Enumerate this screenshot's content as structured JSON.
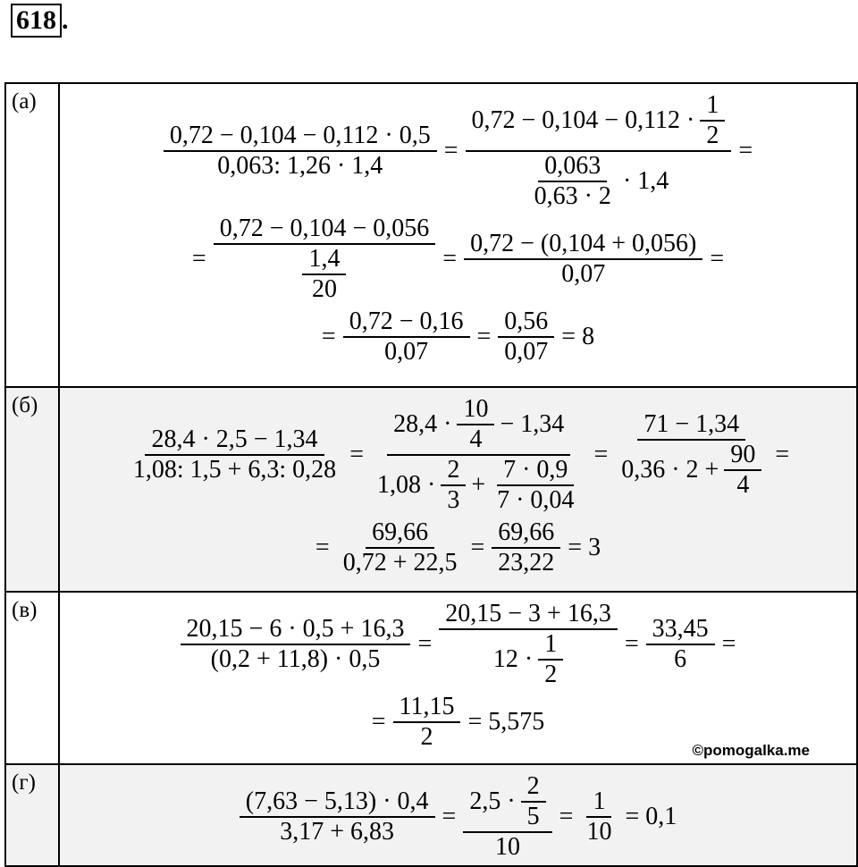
{
  "header": {
    "number": "618",
    "suffix": "."
  },
  "rows": [
    {
      "label": "(а)",
      "lines": [
        [
          {
            "num": [
              "0,72 − 0,104 − 0,112 · 0,5"
            ],
            "den": [
              "0,063: 1,26 · 1,4"
            ]
          },
          "=",
          {
            "num": [
              "0,72 − 0,104 − 0,112 ·",
              {
                "num": [
                  "1"
                ],
                "den": [
                  "2"
                ]
              }
            ],
            "den": [
              {
                "num": [
                  "0,063"
                ],
                "den": [
                  "0,63 · 2"
                ]
              },
              "· 1,4"
            ]
          },
          "="
        ],
        [
          "=",
          {
            "num": [
              "0,72 − 0,104 − 0,056"
            ],
            "den": [
              {
                "num": [
                  "1,4"
                ],
                "den": [
                  "20"
                ]
              }
            ]
          },
          "=",
          {
            "num": [
              "0,72 − (0,104 + 0,056)"
            ],
            "den": [
              "0,07"
            ]
          },
          "="
        ],
        [
          "=",
          {
            "num": [
              "0,72 − 0,16"
            ],
            "den": [
              "0,07"
            ]
          },
          "=",
          {
            "num": [
              "0,56"
            ],
            "den": [
              "0,07"
            ]
          },
          "= 8"
        ]
      ]
    },
    {
      "label": "(б)",
      "lines": [
        [
          {
            "num": [
              "28,4 · 2,5 − 1,34"
            ],
            "den": [
              "1,08: 1,5 + 6,3: 0,28"
            ]
          },
          "=",
          {
            "num": [
              "28,4 ·",
              {
                "num": [
                  "10"
                ],
                "den": [
                  "4"
                ]
              },
              "− 1,34"
            ],
            "den": [
              "1,08 ·",
              {
                "num": [
                  "2"
                ],
                "den": [
                  "3"
                ]
              },
              "+",
              {
                "num": [
                  "7 · 0,9"
                ],
                "den": [
                  "7 · 0,04"
                ]
              }
            ]
          },
          "=",
          {
            "num": [
              "71 − 1,34"
            ],
            "den": [
              "0,36 · 2 +",
              {
                "num": [
                  "90"
                ],
                "den": [
                  "4"
                ]
              }
            ]
          },
          "="
        ],
        [
          "=",
          {
            "num": [
              "69,66"
            ],
            "den": [
              "0,72 + 22,5"
            ]
          },
          "=",
          {
            "num": [
              "69,66"
            ],
            "den": [
              "23,22"
            ]
          },
          "= 3"
        ]
      ]
    },
    {
      "label": "(в)",
      "lines": [
        [
          {
            "num": [
              "20,15 − 6 · 0,5 + 16,3"
            ],
            "den": [
              "(0,2 + 11,8) · 0,5"
            ]
          },
          "=",
          {
            "num": [
              "20,15 − 3 + 16,3"
            ],
            "den": [
              "12 ·",
              {
                "num": [
                  "1"
                ],
                "den": [
                  "2"
                ]
              }
            ]
          },
          "=",
          {
            "num": [
              "33,45"
            ],
            "den": [
              "6"
            ]
          },
          "="
        ],
        [
          "=",
          {
            "num": [
              "11,15"
            ],
            "den": [
              "2"
            ]
          },
          "= 5,575"
        ]
      ],
      "watermark": "©pomogalka.me"
    },
    {
      "label": "(г)",
      "lines": [
        [
          {
            "num": [
              "(7,63 − 5,13) · 0,4"
            ],
            "den": [
              "3,17 + 6,83"
            ]
          },
          "=",
          {
            "num": [
              "2,5 ·",
              {
                "num": [
                  "2"
                ],
                "den": [
                  "5"
                ]
              }
            ],
            "den": [
              "10"
            ]
          },
          "=",
          {
            "num": [
              "1"
            ],
            "den": [
              "10"
            ]
          },
          "= 0,1"
        ]
      ]
    }
  ]
}
